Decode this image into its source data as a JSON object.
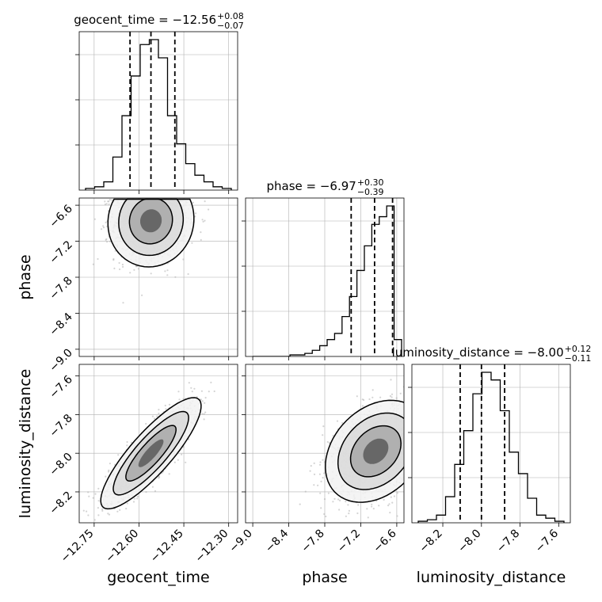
{
  "chart_data": {
    "type": "corner",
    "parameters": [
      "geocent_time",
      "phase",
      "luminosity_distance"
    ],
    "axis_labels": [
      "geocent_time",
      "phase",
      "luminosity_distance"
    ],
    "titles": [
      {
        "param": "geocent_time",
        "main": "geocent_time = −12.56",
        "sup": "+0.08",
        "sub": "−0.07"
      },
      {
        "param": "phase",
        "main": "phase = −6.97",
        "sup": "+0.30",
        "sub": "−0.39"
      },
      {
        "param": "luminosity_distance",
        "main": "luminosity_distance = −8.00",
        "sup": "+0.12",
        "sub": "−0.11"
      }
    ],
    "ranges": {
      "geocent_time": [
        -12.8,
        -12.27
      ],
      "phase": [
        -9.12,
        -6.48
      ],
      "luminosity_distance": [
        -8.36,
        -7.54
      ]
    },
    "ticks": {
      "geocent_time": {
        "values": [
          -12.75,
          -12.6,
          -12.45,
          -12.3
        ],
        "labels": [
          "−12.75",
          "−12.60",
          "−12.45",
          "−12.30"
        ]
      },
      "phase": {
        "values": [
          -9.0,
          -8.4,
          -7.8,
          -7.2,
          -6.6
        ],
        "labels": [
          "−9.0",
          "−8.4",
          "−7.8",
          "−7.2",
          "−6.6"
        ]
      },
      "luminosity_distance": {
        "values": [
          -8.2,
          -8.0,
          -7.8,
          -7.6
        ],
        "labels": [
          "−8.2",
          "−8.0",
          "−7.8",
          "−7.6"
        ]
      }
    },
    "histograms": [
      {
        "param": "geocent_time",
        "counts": [
          1,
          2,
          5,
          20,
          45,
          69,
          88,
          91,
          80,
          45,
          28,
          16,
          9,
          5,
          2,
          1
        ],
        "quantiles": [
          -12.63,
          -12.56,
          -12.48
        ]
      },
      {
        "param": "phase",
        "counts": [
          0,
          0,
          0,
          0,
          0,
          1,
          1,
          2,
          4,
          7,
          11,
          15,
          26,
          39,
          56,
          72,
          86,
          91,
          98,
          11
        ],
        "quantiles": [
          -7.36,
          -6.97,
          -6.67
        ]
      },
      {
        "param": "luminosity_distance",
        "counts": [
          1,
          2,
          5,
          17,
          38,
          60,
          84,
          98,
          93,
          73,
          46,
          32,
          16,
          5,
          3,
          1
        ],
        "quantiles": [
          -8.11,
          -8.0,
          -7.88
        ]
      }
    ],
    "scatter_2d": [
      {
        "x": "geocent_time",
        "y": "phase",
        "mean": [
          -12.56,
          -6.86
        ],
        "sd": [
          0.06,
          0.32
        ],
        "corr": 0.05
      },
      {
        "x": "geocent_time",
        "y": "luminosity_distance",
        "mean": [
          -12.56,
          -8.0
        ],
        "sd": [
          0.07,
          0.12
        ],
        "corr": 0.85
      },
      {
        "x": "phase",
        "y": "luminosity_distance",
        "mean": [
          -6.95,
          -7.99
        ],
        "sd": [
          0.35,
          0.11
        ],
        "corr": 0.3
      }
    ],
    "grid": true,
    "colors": {
      "hist": "#000000",
      "points": "#b0b0b0",
      "density": "#000000",
      "grid": "#b0b0b0"
    }
  }
}
